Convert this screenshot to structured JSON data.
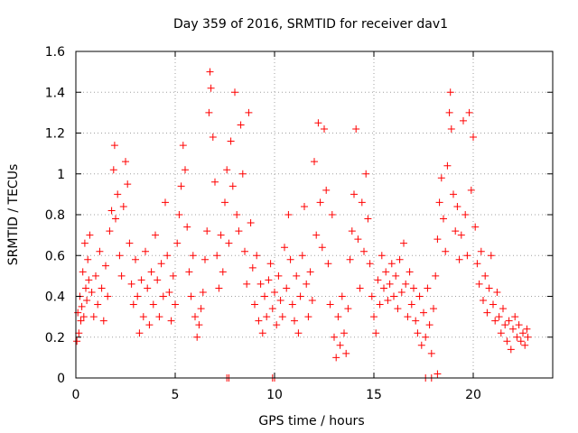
{
  "chart_data": {
    "type": "scatter",
    "title": "Day 359 of 2016, SRMTID for receiver dav1",
    "xlabel": "GPS time / hours",
    "ylabel": "SRMTID / TECUs",
    "xlim": [
      0,
      24
    ],
    "ylim": [
      0,
      1.6
    ],
    "xticks": [
      0,
      5,
      10,
      15,
      20
    ],
    "xtick_labels": [
      "0",
      "5",
      "10",
      "15",
      "20"
    ],
    "yticks": [
      0,
      0.2,
      0.4,
      0.6,
      0.8,
      1.0,
      1.2,
      1.4,
      1.6
    ],
    "ytick_labels": [
      "0",
      "0.2",
      "0.4",
      "0.6",
      "0.8",
      "1",
      "1.2",
      "1.4",
      "1.6"
    ],
    "grid": true,
    "marker": "plus",
    "color": "#ff0000",
    "series": [
      {
        "name": "SRMTID",
        "points": [
          [
            0.05,
            0.18
          ],
          [
            0.1,
            0.32
          ],
          [
            0.15,
            0.22
          ],
          [
            0.2,
            0.4
          ],
          [
            0.25,
            0.28
          ],
          [
            0.3,
            0.35
          ],
          [
            0.35,
            0.52
          ],
          [
            0.4,
            0.3
          ],
          [
            0.45,
            0.66
          ],
          [
            0.5,
            0.44
          ],
          [
            0.55,
            0.38
          ],
          [
            0.6,
            0.58
          ],
          [
            0.65,
            0.48
          ],
          [
            0.7,
            0.7
          ],
          [
            0.8,
            0.42
          ],
          [
            0.9,
            0.3
          ],
          [
            1.0,
            0.5
          ],
          [
            1.1,
            0.36
          ],
          [
            1.2,
            0.62
          ],
          [
            1.3,
            0.44
          ],
          [
            1.4,
            0.28
          ],
          [
            1.5,
            0.55
          ],
          [
            1.6,
            0.4
          ],
          [
            1.7,
            0.72
          ],
          [
            1.8,
            0.82
          ],
          [
            1.9,
            1.02
          ],
          [
            1.95,
            1.14
          ],
          [
            2.0,
            0.78
          ],
          [
            2.1,
            0.9
          ],
          [
            2.2,
            0.6
          ],
          [
            2.3,
            0.5
          ],
          [
            2.4,
            0.84
          ],
          [
            2.5,
            1.06
          ],
          [
            2.6,
            0.95
          ],
          [
            2.7,
            0.66
          ],
          [
            2.8,
            0.46
          ],
          [
            2.9,
            0.36
          ],
          [
            3.0,
            0.58
          ],
          [
            3.1,
            0.4
          ],
          [
            3.2,
            0.22
          ],
          [
            3.3,
            0.48
          ],
          [
            3.4,
            0.3
          ],
          [
            3.5,
            0.62
          ],
          [
            3.6,
            0.44
          ],
          [
            3.7,
            0.26
          ],
          [
            3.8,
            0.52
          ],
          [
            3.9,
            0.36
          ],
          [
            4.0,
            0.7
          ],
          [
            4.1,
            0.48
          ],
          [
            4.2,
            0.3
          ],
          [
            4.3,
            0.56
          ],
          [
            4.4,
            0.4
          ],
          [
            4.5,
            0.86
          ],
          [
            4.6,
            0.6
          ],
          [
            4.7,
            0.42
          ],
          [
            4.8,
            0.28
          ],
          [
            4.9,
            0.5
          ],
          [
            5.0,
            0.36
          ],
          [
            5.1,
            0.66
          ],
          [
            5.2,
            0.8
          ],
          [
            5.3,
            0.94
          ],
          [
            5.4,
            1.14
          ],
          [
            5.5,
            1.02
          ],
          [
            5.6,
            0.74
          ],
          [
            5.7,
            0.52
          ],
          [
            5.8,
            0.4
          ],
          [
            5.9,
            0.6
          ],
          [
            6.0,
            0.3
          ],
          [
            6.1,
            0.2
          ],
          [
            6.2,
            0.26
          ],
          [
            6.3,
            0.34
          ],
          [
            6.4,
            0.42
          ],
          [
            6.5,
            0.58
          ],
          [
            6.6,
            0.72
          ],
          [
            6.7,
            1.3
          ],
          [
            6.75,
            1.5
          ],
          [
            6.8,
            1.42
          ],
          [
            6.9,
            1.18
          ],
          [
            7.0,
            0.96
          ],
          [
            7.1,
            0.6
          ],
          [
            7.2,
            0.44
          ],
          [
            7.3,
            0.7
          ],
          [
            7.4,
            0.52
          ],
          [
            7.5,
            0.86
          ],
          [
            7.6,
            1.02
          ],
          [
            7.7,
            0.66
          ],
          [
            7.8,
            1.16
          ],
          [
            7.9,
            0.94
          ],
          [
            8.0,
            1.4
          ],
          [
            8.1,
            0.8
          ],
          [
            8.2,
            0.72
          ],
          [
            8.3,
            1.24
          ],
          [
            8.4,
            1.0
          ],
          [
            8.5,
            0.62
          ],
          [
            8.6,
            0.46
          ],
          [
            8.7,
            1.3
          ],
          [
            8.8,
            0.76
          ],
          [
            8.9,
            0.54
          ],
          [
            9.0,
            0.36
          ],
          [
            9.1,
            0.6
          ],
          [
            9.2,
            0.28
          ],
          [
            9.3,
            0.46
          ],
          [
            9.4,
            0.22
          ],
          [
            9.5,
            0.4
          ],
          [
            9.6,
            0.3
          ],
          [
            9.7,
            0.48
          ],
          [
            9.8,
            0.56
          ],
          [
            9.9,
            0.34
          ],
          [
            10.0,
            0.42
          ],
          [
            10.1,
            0.26
          ],
          [
            10.2,
            0.5
          ],
          [
            10.3,
            0.38
          ],
          [
            10.4,
            0.3
          ],
          [
            10.5,
            0.64
          ],
          [
            10.6,
            0.44
          ],
          [
            10.7,
            0.8
          ],
          [
            10.8,
            0.58
          ],
          [
            10.9,
            0.36
          ],
          [
            11.0,
            0.28
          ],
          [
            11.1,
            0.5
          ],
          [
            11.2,
            0.22
          ],
          [
            11.3,
            0.4
          ],
          [
            11.4,
            0.6
          ],
          [
            11.5,
            0.84
          ],
          [
            11.6,
            0.46
          ],
          [
            11.7,
            0.3
          ],
          [
            11.8,
            0.52
          ],
          [
            11.9,
            0.38
          ],
          [
            12.0,
            1.06
          ],
          [
            12.1,
            0.7
          ],
          [
            12.2,
            1.25
          ],
          [
            12.3,
            0.86
          ],
          [
            12.4,
            0.64
          ],
          [
            12.5,
            1.22
          ],
          [
            12.6,
            0.92
          ],
          [
            12.7,
            0.56
          ],
          [
            12.8,
            0.36
          ],
          [
            12.9,
            0.8
          ],
          [
            13.0,
            0.2
          ],
          [
            13.1,
            0.1
          ],
          [
            13.2,
            0.3
          ],
          [
            13.3,
            0.16
          ],
          [
            13.4,
            0.4
          ],
          [
            13.5,
            0.22
          ],
          [
            13.6,
            0.12
          ],
          [
            13.7,
            0.34
          ],
          [
            13.8,
            0.58
          ],
          [
            13.9,
            0.72
          ],
          [
            14.0,
            0.9
          ],
          [
            14.1,
            1.22
          ],
          [
            14.2,
            0.68
          ],
          [
            14.3,
            0.44
          ],
          [
            14.4,
            0.86
          ],
          [
            14.5,
            0.62
          ],
          [
            14.6,
            1.0
          ],
          [
            14.7,
            0.78
          ],
          [
            14.8,
            0.56
          ],
          [
            14.9,
            0.4
          ],
          [
            15.0,
            0.3
          ],
          [
            15.1,
            0.22
          ],
          [
            15.2,
            0.48
          ],
          [
            15.3,
            0.36
          ],
          [
            15.4,
            0.6
          ],
          [
            15.5,
            0.44
          ],
          [
            15.6,
            0.52
          ],
          [
            15.7,
            0.38
          ],
          [
            15.8,
            0.46
          ],
          [
            15.9,
            0.56
          ],
          [
            16.0,
            0.4
          ],
          [
            16.1,
            0.5
          ],
          [
            16.2,
            0.34
          ],
          [
            16.3,
            0.58
          ],
          [
            16.4,
            0.42
          ],
          [
            16.5,
            0.66
          ],
          [
            16.6,
            0.46
          ],
          [
            16.7,
            0.3
          ],
          [
            16.8,
            0.52
          ],
          [
            16.9,
            0.36
          ],
          [
            17.0,
            0.44
          ],
          [
            17.1,
            0.28
          ],
          [
            17.2,
            0.22
          ],
          [
            17.3,
            0.4
          ],
          [
            17.4,
            0.16
          ],
          [
            17.5,
            0.32
          ],
          [
            17.6,
            0.2
          ],
          [
            17.7,
            0.44
          ],
          [
            17.8,
            0.26
          ],
          [
            17.9,
            0.12
          ],
          [
            18.0,
            0.34
          ],
          [
            18.1,
            0.5
          ],
          [
            18.2,
            0.68
          ],
          [
            18.3,
            0.86
          ],
          [
            18.4,
            0.98
          ],
          [
            18.5,
            0.78
          ],
          [
            18.6,
            0.62
          ],
          [
            18.7,
            1.04
          ],
          [
            18.8,
            1.3
          ],
          [
            18.85,
            1.4
          ],
          [
            18.9,
            1.22
          ],
          [
            19.0,
            0.9
          ],
          [
            19.1,
            0.72
          ],
          [
            19.2,
            0.84
          ],
          [
            19.3,
            0.58
          ],
          [
            19.4,
            0.7
          ],
          [
            19.5,
            1.26
          ],
          [
            19.6,
            0.8
          ],
          [
            19.7,
            0.6
          ],
          [
            19.8,
            1.3
          ],
          [
            19.9,
            0.92
          ],
          [
            20.0,
            1.18
          ],
          [
            20.1,
            0.74
          ],
          [
            20.2,
            0.56
          ],
          [
            20.3,
            0.46
          ],
          [
            20.4,
            0.62
          ],
          [
            20.5,
            0.38
          ],
          [
            20.6,
            0.5
          ],
          [
            20.7,
            0.32
          ],
          [
            20.8,
            0.44
          ],
          [
            20.9,
            0.6
          ],
          [
            21.0,
            0.36
          ],
          [
            21.1,
            0.28
          ],
          [
            21.2,
            0.42
          ],
          [
            21.3,
            0.3
          ],
          [
            21.4,
            0.22
          ],
          [
            21.5,
            0.34
          ],
          [
            21.6,
            0.26
          ],
          [
            21.7,
            0.18
          ],
          [
            21.8,
            0.28
          ],
          [
            21.9,
            0.14
          ],
          [
            22.0,
            0.24
          ],
          [
            22.1,
            0.3
          ],
          [
            22.2,
            0.2
          ],
          [
            22.3,
            0.26
          ],
          [
            22.4,
            0.18
          ],
          [
            22.5,
            0.22
          ],
          [
            22.6,
            0.16
          ],
          [
            22.7,
            0.24
          ],
          [
            22.75,
            0.2
          ],
          [
            7.6,
            0.0
          ],
          [
            7.7,
            0.0
          ],
          [
            9.9,
            0.0
          ],
          [
            10.0,
            0.0
          ],
          [
            17.6,
            0.0
          ],
          [
            17.9,
            0.0
          ],
          [
            18.2,
            0.02
          ]
        ]
      }
    ]
  }
}
